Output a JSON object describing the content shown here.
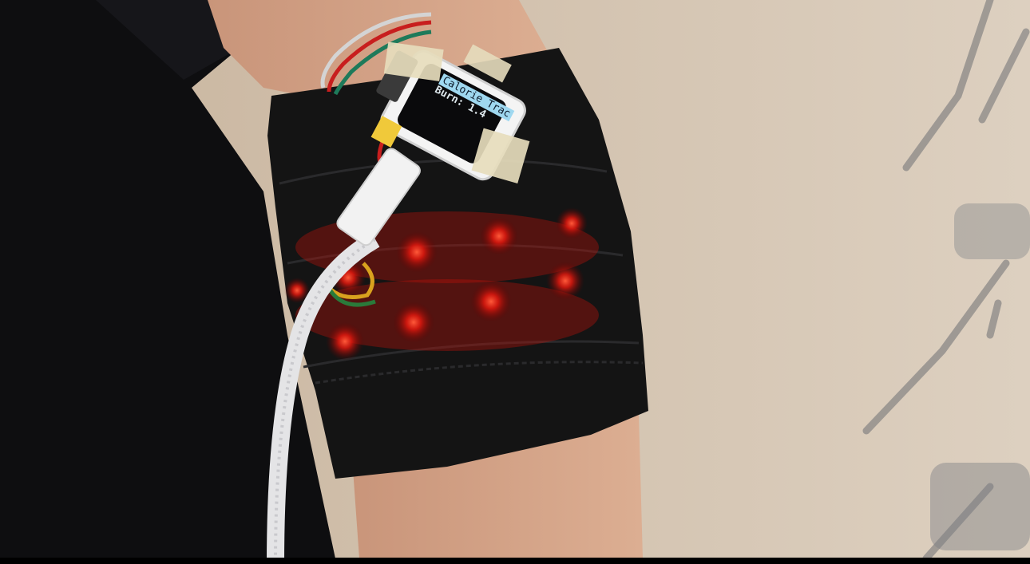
{
  "scene": {
    "background_color": "#d2c2ae",
    "sleeve_color": "#141414",
    "led_color": "#ff2a1a"
  },
  "device": {
    "screen": {
      "line1": "Calorie Trac",
      "line2": "Burn: 1.4",
      "highlight_color": "#9fd8f0"
    }
  }
}
